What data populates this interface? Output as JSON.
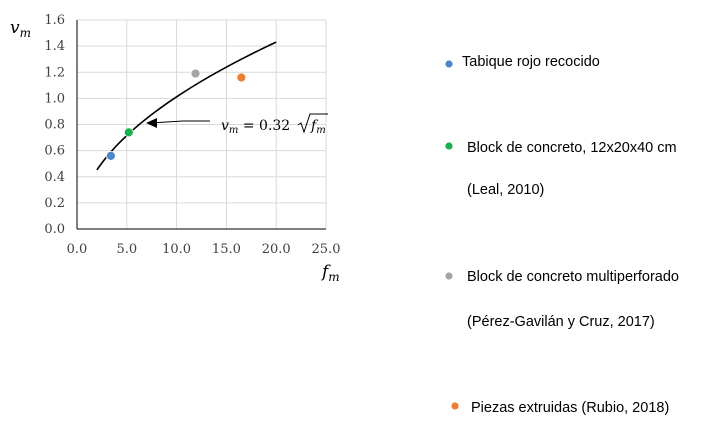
{
  "chart_data": {
    "type": "scatter",
    "xlabel": "f",
    "xlabel_sub": "m",
    "ylabel": "v",
    "ylabel_sub": "m",
    "xlim": [
      0,
      25
    ],
    "ylim": [
      0,
      1.6
    ],
    "x_ticks": [
      "0.0",
      "5.0",
      "10.0",
      "15.0",
      "20.0",
      "25.0"
    ],
    "y_ticks": [
      "0.0",
      "0.2",
      "0.4",
      "0.6",
      "0.8",
      "1.0",
      "1.2",
      "1.4",
      "1.6"
    ],
    "grid": true,
    "curve": {
      "equation_lhs": "v",
      "equation_lhs_sub": "m",
      "equation_mid": " = 0.32",
      "equation_rad": "f",
      "equation_rad_sub": "m",
      "coefficient": 0.32,
      "x_range": [
        2,
        20
      ],
      "color": "#000000"
    },
    "series": [
      {
        "name_lines": [
          "Tabique rojo recocido"
        ],
        "color": "#4a86c8",
        "points": [
          [
            3.4,
            0.56
          ]
        ]
      },
      {
        "name_lines": [
          "Block de concreto, 12x20x40 cm",
          "(Leal, 2010)"
        ],
        "color": "#18b04c",
        "points": [
          [
            5.2,
            0.74
          ]
        ]
      },
      {
        "name_lines": [
          "Block de concreto multiperforado",
          "(Pérez-Gavilán y Cruz, 2017)"
        ],
        "color": "#a5a5a5",
        "points": [
          [
            11.9,
            1.19
          ]
        ]
      },
      {
        "name_lines": [
          "Piezas extruidas (Rubio, 2018)"
        ],
        "color": "#ed7d31",
        "points": [
          [
            16.5,
            1.16
          ]
        ]
      }
    ],
    "legend_position": "right"
  }
}
